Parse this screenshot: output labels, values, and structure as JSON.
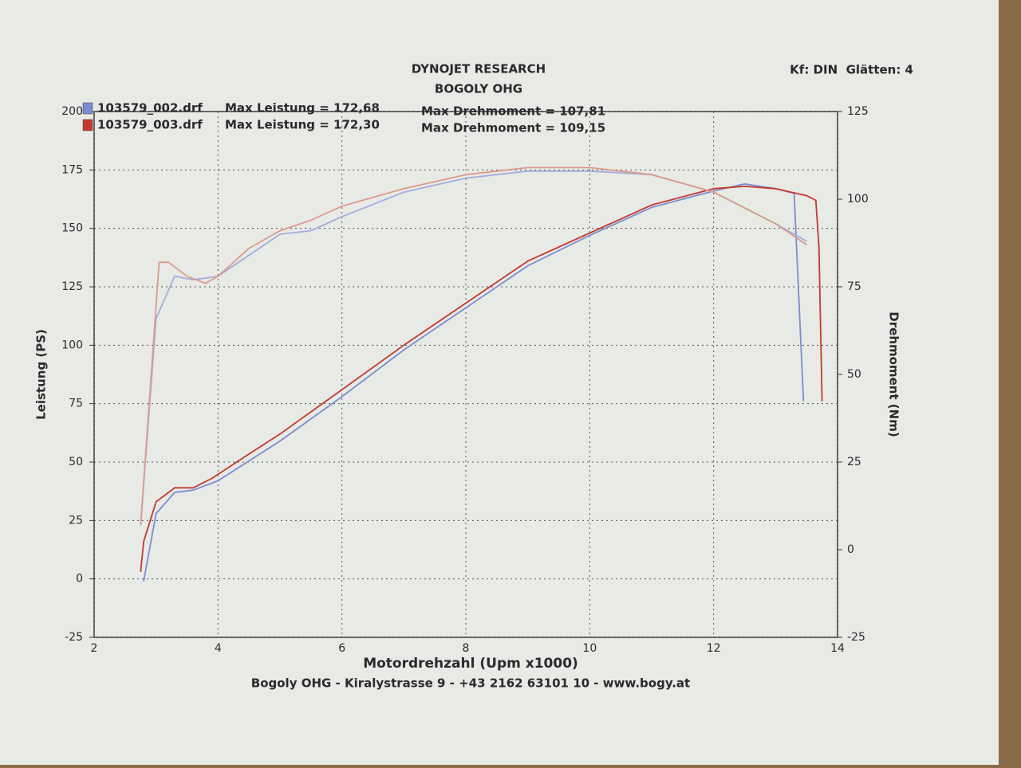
{
  "chart_data": {
    "type": "line",
    "title": "DYNOJET RESEARCH",
    "subtitle": "BOGOLY OHG",
    "corner_note": "Kf: DIN  Glätten: 4",
    "footer": "Bogoly OHG - Kiralystrasse 9 - +43 2162 63101 10 - www.bogy.at",
    "x_label": "Motordrehzahl (Upm x1000)",
    "y_label": "Leistung (PS)",
    "y2_label": "Drehmoment (Nm)",
    "xlim": [
      2,
      14
    ],
    "xticks": [
      2,
      4,
      6,
      8,
      10,
      12,
      14
    ],
    "ylim": [
      -25,
      200
    ],
    "yticks": [
      -25,
      0,
      25,
      50,
      75,
      100,
      125,
      150,
      175,
      200
    ],
    "y2lim": [
      -25,
      125
    ],
    "y2ticks": [
      -25,
      0,
      25,
      50,
      75,
      100,
      125
    ],
    "grid": true,
    "legend_notes": [
      [
        "Max Leistung = 172,68",
        "Max Drehmoment = 107,81"
      ],
      [
        "Max Leistung = 172,30",
        "Max Drehmoment = 109,15"
      ]
    ],
    "series": [
      {
        "name": "103579_002.drf",
        "color": "#7b8bd4",
        "x": [
          2.8,
          3.0,
          3.3,
          3.6,
          4.0,
          5.0,
          6.0,
          7.0,
          8.0,
          9.0,
          10.0,
          11.0,
          12.0,
          12.5,
          13.0,
          13.3,
          13.45
        ],
        "values": [
          -1,
          28,
          37,
          38,
          42,
          59,
          78,
          98,
          116,
          134,
          147,
          159,
          166,
          169,
          167,
          165,
          76
        ]
      },
      {
        "name": "103579_003.drf",
        "color": "#c23a2c",
        "x": [
          2.75,
          2.8,
          3.0,
          3.3,
          3.6,
          3.9,
          4.3,
          5.0,
          6.0,
          7.0,
          8.0,
          9.0,
          10.0,
          11.0,
          12.0,
          12.5,
          13.0,
          13.5,
          13.65,
          13.7,
          13.75
        ],
        "values": [
          3,
          16,
          33,
          39,
          39,
          43,
          50,
          62,
          81,
          100,
          118,
          136,
          148,
          160,
          167,
          168,
          167,
          164,
          162,
          142,
          76
        ]
      },
      {
        "axis": "y2",
        "color": "#a3acdc",
        "x": [
          2.75,
          3.0,
          3.3,
          3.6,
          4.0,
          4.5,
          5.0,
          5.5,
          6.0,
          7.0,
          8.0,
          9.0,
          10.0,
          11.0,
          12.0,
          13.0,
          13.5
        ],
        "values": [
          7,
          66,
          78,
          77,
          78,
          84,
          90,
          91,
          95,
          102,
          106,
          108,
          108,
          107,
          102,
          93,
          88
        ]
      },
      {
        "axis": "y2",
        "color": "#dc9a8c",
        "x": [
          2.75,
          3.05,
          3.2,
          3.5,
          3.8,
          4.0,
          4.5,
          5.0,
          5.5,
          6.0,
          7.0,
          8.0,
          9.0,
          10.0,
          11.0,
          12.0,
          13.0,
          13.5
        ],
        "values": [
          7,
          82,
          82,
          78,
          76,
          78,
          86,
          91,
          94,
          98,
          103,
          107,
          109,
          109,
          107,
          102,
          93,
          87
        ]
      }
    ]
  }
}
